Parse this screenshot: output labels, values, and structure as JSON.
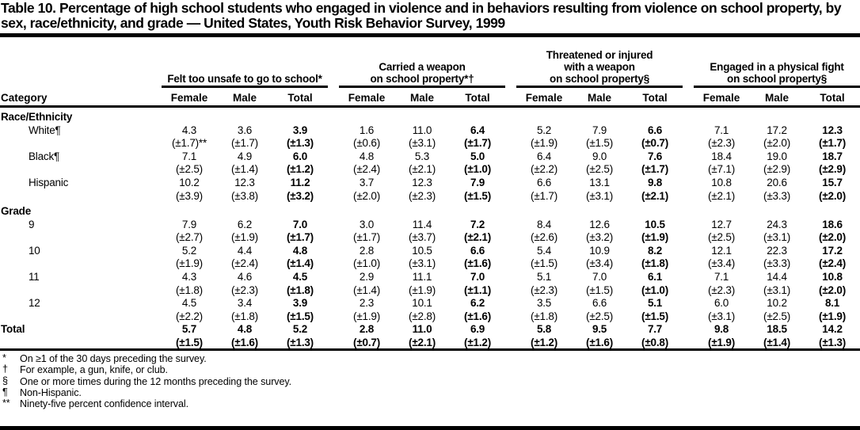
{
  "title": "Table 10. Percentage of high school students who engaged in violence and in behaviors resulting from violence on school property, by sex, race/ethnicity, and grade — United States, Youth Risk Behavior Survey, 1999",
  "table": {
    "category_header": "Category",
    "sub_headers": [
      "Female",
      "Male",
      "Total"
    ],
    "groups": [
      {
        "lines": [
          "Felt too unsafe to go to school*"
        ]
      },
      {
        "lines": [
          "Carried a weapon",
          "on school property*†"
        ]
      },
      {
        "lines": [
          "Threatened or injured",
          "with a weapon",
          "on school property§"
        ]
      },
      {
        "lines": [
          "Engaged in a physical fight",
          "on school property§"
        ]
      }
    ],
    "sections": [
      {
        "label": "Race/Ethnicity",
        "rows": [
          {
            "category": "White¶",
            "values": [
              "4.3",
              "3.6",
              "3.9",
              "1.6",
              "11.0",
              "6.4",
              "5.2",
              "7.9",
              "6.6",
              "7.1",
              "17.2",
              "12.3"
            ],
            "ci": [
              "(±1.7)**",
              "(±1.7)",
              "(±1.3)",
              "(±0.6)",
              "(±3.1)",
              "(±1.7)",
              "(±1.9)",
              "(±1.5)",
              "(±0.7)",
              "(±2.3)",
              "(±2.0)",
              "(±1.7)"
            ]
          },
          {
            "category": "Black¶",
            "values": [
              "7.1",
              "4.9",
              "6.0",
              "4.8",
              "5.3",
              "5.0",
              "6.4",
              "9.0",
              "7.6",
              "18.4",
              "19.0",
              "18.7"
            ],
            "ci": [
              "(±2.5)",
              "(±1.4)",
              "(±1.2)",
              "(±2.4)",
              "(±2.1)",
              "(±1.0)",
              "(±2.2)",
              "(±2.5)",
              "(±1.7)",
              "(±7.1)",
              "(±2.9)",
              "(±2.9)"
            ]
          },
          {
            "category": "Hispanic",
            "values": [
              "10.2",
              "12.3",
              "11.2",
              "3.7",
              "12.3",
              "7.9",
              "6.6",
              "13.1",
              "9.8",
              "10.8",
              "20.6",
              "15.7"
            ],
            "ci": [
              "(±3.9)",
              "(±3.8)",
              "(±3.2)",
              "(±2.0)",
              "(±2.3)",
              "(±1.5)",
              "(±1.7)",
              "(±3.1)",
              "(±2.1)",
              "(±2.1)",
              "(±3.3)",
              "(±2.0)"
            ]
          }
        ]
      },
      {
        "label": "Grade",
        "rows": [
          {
            "category": "9",
            "values": [
              "7.9",
              "6.2",
              "7.0",
              "3.0",
              "11.4",
              "7.2",
              "8.4",
              "12.6",
              "10.5",
              "12.7",
              "24.3",
              "18.6"
            ],
            "ci": [
              "(±2.7)",
              "(±1.9)",
              "(±1.7)",
              "(±1.7)",
              "(±3.7)",
              "(±2.1)",
              "(±2.6)",
              "(±3.2)",
              "(±1.9)",
              "(±2.5)",
              "(±3.1)",
              "(±2.0)"
            ]
          },
          {
            "category": "10",
            "values": [
              "5.2",
              "4.4",
              "4.8",
              "2.8",
              "10.5",
              "6.6",
              "5.4",
              "10.9",
              "8.2",
              "12.1",
              "22.3",
              "17.2"
            ],
            "ci": [
              "(±1.9)",
              "(±2.4)",
              "(±1.4)",
              "(±1.0)",
              "(±3.1)",
              "(±1.6)",
              "(±1.5)",
              "(±3.4)",
              "(±1.8)",
              "(±3.4)",
              "(±3.3)",
              "(±2.4)"
            ]
          },
          {
            "category": "11",
            "values": [
              "4.3",
              "4.6",
              "4.5",
              "2.9",
              "11.1",
              "7.0",
              "5.1",
              "7.0",
              "6.1",
              "7.1",
              "14.4",
              "10.8"
            ],
            "ci": [
              "(±1.8)",
              "(±2.3)",
              "(±1.8)",
              "(±1.4)",
              "(±1.9)",
              "(±1.1)",
              "(±2.3)",
              "(±1.5)",
              "(±1.0)",
              "(±2.3)",
              "(±3.1)",
              "(±2.0)"
            ]
          },
          {
            "category": "12",
            "values": [
              "4.5",
              "3.4",
              "3.9",
              "2.3",
              "10.1",
              "6.2",
              "3.5",
              "6.6",
              "5.1",
              "6.0",
              "10.2",
              "8.1"
            ],
            "ci": [
              "(±2.2)",
              "(±1.8)",
              "(±1.5)",
              "(±1.9)",
              "(±2.8)",
              "(±1.6)",
              "(±1.8)",
              "(±2.5)",
              "(±1.5)",
              "(±3.1)",
              "(±2.5)",
              "(±1.9)"
            ]
          }
        ]
      }
    ],
    "total": {
      "category": "Total",
      "values": [
        "5.7",
        "4.8",
        "5.2",
        "2.8",
        "11.0",
        "6.9",
        "5.8",
        "9.5",
        "7.7",
        "9.8",
        "18.5",
        "14.2"
      ],
      "ci": [
        "(±1.5)",
        "(±1.6)",
        "(±1.3)",
        "(±0.7)",
        "(±2.1)",
        "(±1.2)",
        "(±1.2)",
        "(±1.6)",
        "(±0.8)",
        "(±1.9)",
        "(±1.4)",
        "(±1.3)"
      ]
    }
  },
  "footnotes": [
    {
      "symbol": "*",
      "text": "On ≥1 of the 30 days preceding the survey."
    },
    {
      "symbol": "†",
      "text": "For example, a gun, knife, or club."
    },
    {
      "symbol": "§",
      "text": "One or more times during the 12 months preceding the survey."
    },
    {
      "symbol": "¶",
      "text": "Non-Hispanic."
    },
    {
      "symbol": "**",
      "text": "Ninety-five percent confidence interval."
    }
  ]
}
